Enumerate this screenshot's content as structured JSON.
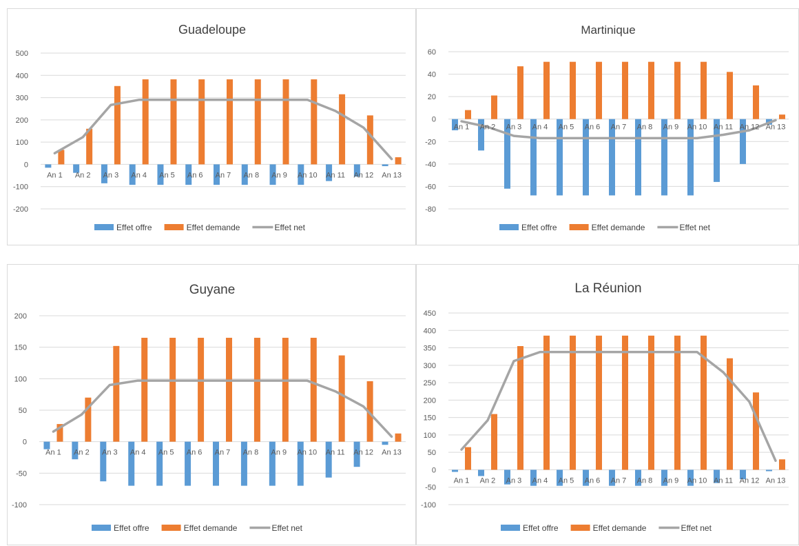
{
  "colors": {
    "offre": "#5b9bd5",
    "demande": "#ed7d31",
    "net": "#a5a5a5",
    "grid": "#d9d9d9",
    "text": "#595959"
  },
  "chart_data": [
    {
      "type": "bar",
      "title": "Guadeloupe",
      "categories": [
        "An 1",
        "An 2",
        "An 3",
        "An 4",
        "An 5",
        "An 6",
        "An 7",
        "An 8",
        "An 9",
        "An 10",
        "An 11",
        "An 12",
        "An 13"
      ],
      "ylim": [
        -200,
        500
      ],
      "yticks": [
        -200,
        -100,
        0,
        100,
        200,
        300,
        400,
        500
      ],
      "grid": true,
      "legend_position": "bottom",
      "series": [
        {
          "name": "Effet offre",
          "type": "bar",
          "values": [
            -15,
            -38,
            -85,
            -92,
            -92,
            -92,
            -92,
            -92,
            -92,
            -92,
            -75,
            -55,
            -8
          ]
        },
        {
          "name": "Effet demande",
          "type": "bar",
          "values": [
            65,
            160,
            352,
            382,
            382,
            382,
            382,
            382,
            382,
            382,
            315,
            220,
            32
          ]
        },
        {
          "name": "Effet net",
          "type": "line",
          "values": [
            50,
            122,
            267,
            290,
            290,
            290,
            290,
            290,
            290,
            290,
            240,
            165,
            24
          ]
        }
      ]
    },
    {
      "type": "bar",
      "title": "Martinique",
      "categories": [
        "An 1",
        "An 2",
        "An 3",
        "An 4",
        "An 5",
        "An 6",
        "An 7",
        "An 8",
        "An 9",
        "An 10",
        "An 11",
        "An 12",
        "An 13"
      ],
      "ylim": [
        -80,
        60
      ],
      "yticks": [
        -80,
        -60,
        -40,
        -20,
        0,
        20,
        40,
        60
      ],
      "grid": true,
      "legend_position": "bottom",
      "series": [
        {
          "name": "Effet offre",
          "type": "bar",
          "values": [
            -10,
            -28,
            -62,
            -68,
            -68,
            -68,
            -68,
            -68,
            -68,
            -68,
            -56,
            -40,
            -5
          ]
        },
        {
          "name": "Effet demande",
          "type": "bar",
          "values": [
            8,
            21,
            47,
            51,
            51,
            51,
            51,
            51,
            51,
            51,
            42,
            30,
            4
          ]
        },
        {
          "name": "Effet net",
          "type": "line",
          "values": [
            -2,
            -7,
            -15,
            -17,
            -17,
            -17,
            -17,
            -17,
            -17,
            -17,
            -14,
            -10,
            -1
          ]
        }
      ]
    },
    {
      "type": "bar",
      "title": "Guyane",
      "categories": [
        "An 1",
        "An 2",
        "An 3",
        "An 4",
        "An 5",
        "An 6",
        "An 7",
        "An 8",
        "An 9",
        "An 10",
        "An 11",
        "An 12",
        "An 13"
      ],
      "ylim": [
        -100,
        200
      ],
      "yticks": [
        -100,
        -50,
        0,
        50,
        100,
        150,
        200
      ],
      "grid": true,
      "legend_position": "bottom",
      "series": [
        {
          "name": "Effet offre",
          "type": "bar",
          "values": [
            -12,
            -28,
            -63,
            -70,
            -70,
            -70,
            -70,
            -70,
            -70,
            -70,
            -57,
            -40,
            -5
          ]
        },
        {
          "name": "Effet demande",
          "type": "bar",
          "values": [
            28,
            70,
            152,
            165,
            165,
            165,
            165,
            165,
            165,
            165,
            137,
            96,
            13
          ]
        },
        {
          "name": "Effet net",
          "type": "line",
          "values": [
            16,
            43,
            90,
            97,
            97,
            97,
            97,
            97,
            97,
            97,
            80,
            56,
            8
          ]
        }
      ]
    },
    {
      "type": "bar",
      "title": "La Réunion",
      "categories": [
        "An 1",
        "An 2",
        "An 3",
        "An 4",
        "An 5",
        "An 6",
        "An 7",
        "An 8",
        "An 9",
        "An 10",
        "An 11",
        "An 12",
        "An 13"
      ],
      "ylim": [
        -100,
        450
      ],
      "yticks": [
        -100,
        -50,
        0,
        50,
        100,
        150,
        200,
        250,
        300,
        350,
        400,
        450
      ],
      "grid": true,
      "legend_position": "bottom",
      "series": [
        {
          "name": "Effet offre",
          "type": "bar",
          "values": [
            -6,
            -18,
            -42,
            -46,
            -46,
            -46,
            -46,
            -46,
            -46,
            -46,
            -38,
            -27,
            -4
          ]
        },
        {
          "name": "Effet demande",
          "type": "bar",
          "values": [
            65,
            160,
            355,
            385,
            385,
            385,
            385,
            385,
            385,
            385,
            320,
            222,
            30
          ]
        },
        {
          "name": "Effet net",
          "type": "line",
          "values": [
            58,
            142,
            312,
            338,
            338,
            338,
            338,
            338,
            338,
            338,
            280,
            195,
            26
          ]
        }
      ]
    }
  ]
}
